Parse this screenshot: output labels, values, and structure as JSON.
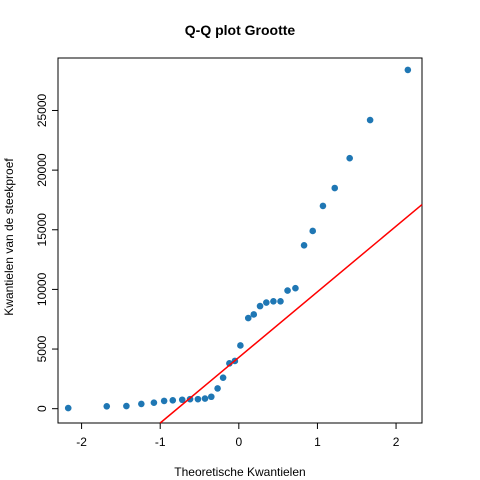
{
  "chart_data": {
    "type": "scatter",
    "title": "Q-Q plot Grootte",
    "xlabel": "Theoretische Kwantielen",
    "ylabel": "Kwantielen van de steekproef",
    "xlim": [
      -2.3,
      2.33
    ],
    "ylim": [
      -1200,
      29400
    ],
    "x_ticks": [
      -2,
      -1,
      0,
      1,
      2
    ],
    "y_ticks": [
      0,
      5000,
      10000,
      15000,
      20000,
      25000
    ],
    "x_tick_labels": [
      "-2",
      "-1",
      "0",
      "1",
      "2"
    ],
    "y_tick_labels": [
      "0",
      "5000",
      "10000",
      "15000",
      "20000",
      "25000"
    ],
    "point_color": "#1f77b4",
    "line_color": "#ff0000",
    "grid": false,
    "reference_line": {
      "slope": 5500,
      "intercept": 4300
    },
    "points": [
      {
        "x": -2.17,
        "y": 50
      },
      {
        "x": -1.68,
        "y": 200
      },
      {
        "x": -1.43,
        "y": 220
      },
      {
        "x": -1.24,
        "y": 400
      },
      {
        "x": -1.08,
        "y": 500
      },
      {
        "x": -0.95,
        "y": 650
      },
      {
        "x": -0.84,
        "y": 700
      },
      {
        "x": -0.72,
        "y": 750
      },
      {
        "x": -0.62,
        "y": 800
      },
      {
        "x": -0.52,
        "y": 800
      },
      {
        "x": -0.43,
        "y": 850
      },
      {
        "x": -0.35,
        "y": 1000
      },
      {
        "x": -0.27,
        "y": 1700
      },
      {
        "x": -0.2,
        "y": 2600
      },
      {
        "x": -0.12,
        "y": 3800
      },
      {
        "x": -0.05,
        "y": 4000
      },
      {
        "x": 0.02,
        "y": 5300
      },
      {
        "x": 0.12,
        "y": 7600
      },
      {
        "x": 0.19,
        "y": 7900
      },
      {
        "x": 0.27,
        "y": 8600
      },
      {
        "x": 0.35,
        "y": 8900
      },
      {
        "x": 0.44,
        "y": 9000
      },
      {
        "x": 0.53,
        "y": 9000
      },
      {
        "x": 0.62,
        "y": 9900
      },
      {
        "x": 0.72,
        "y": 10100
      },
      {
        "x": 0.83,
        "y": 13700
      },
      {
        "x": 0.94,
        "y": 14900
      },
      {
        "x": 1.07,
        "y": 17000
      },
      {
        "x": 1.22,
        "y": 18500
      },
      {
        "x": 1.41,
        "y": 21000
      },
      {
        "x": 1.67,
        "y": 24200
      },
      {
        "x": 2.15,
        "y": 28400
      }
    ]
  }
}
